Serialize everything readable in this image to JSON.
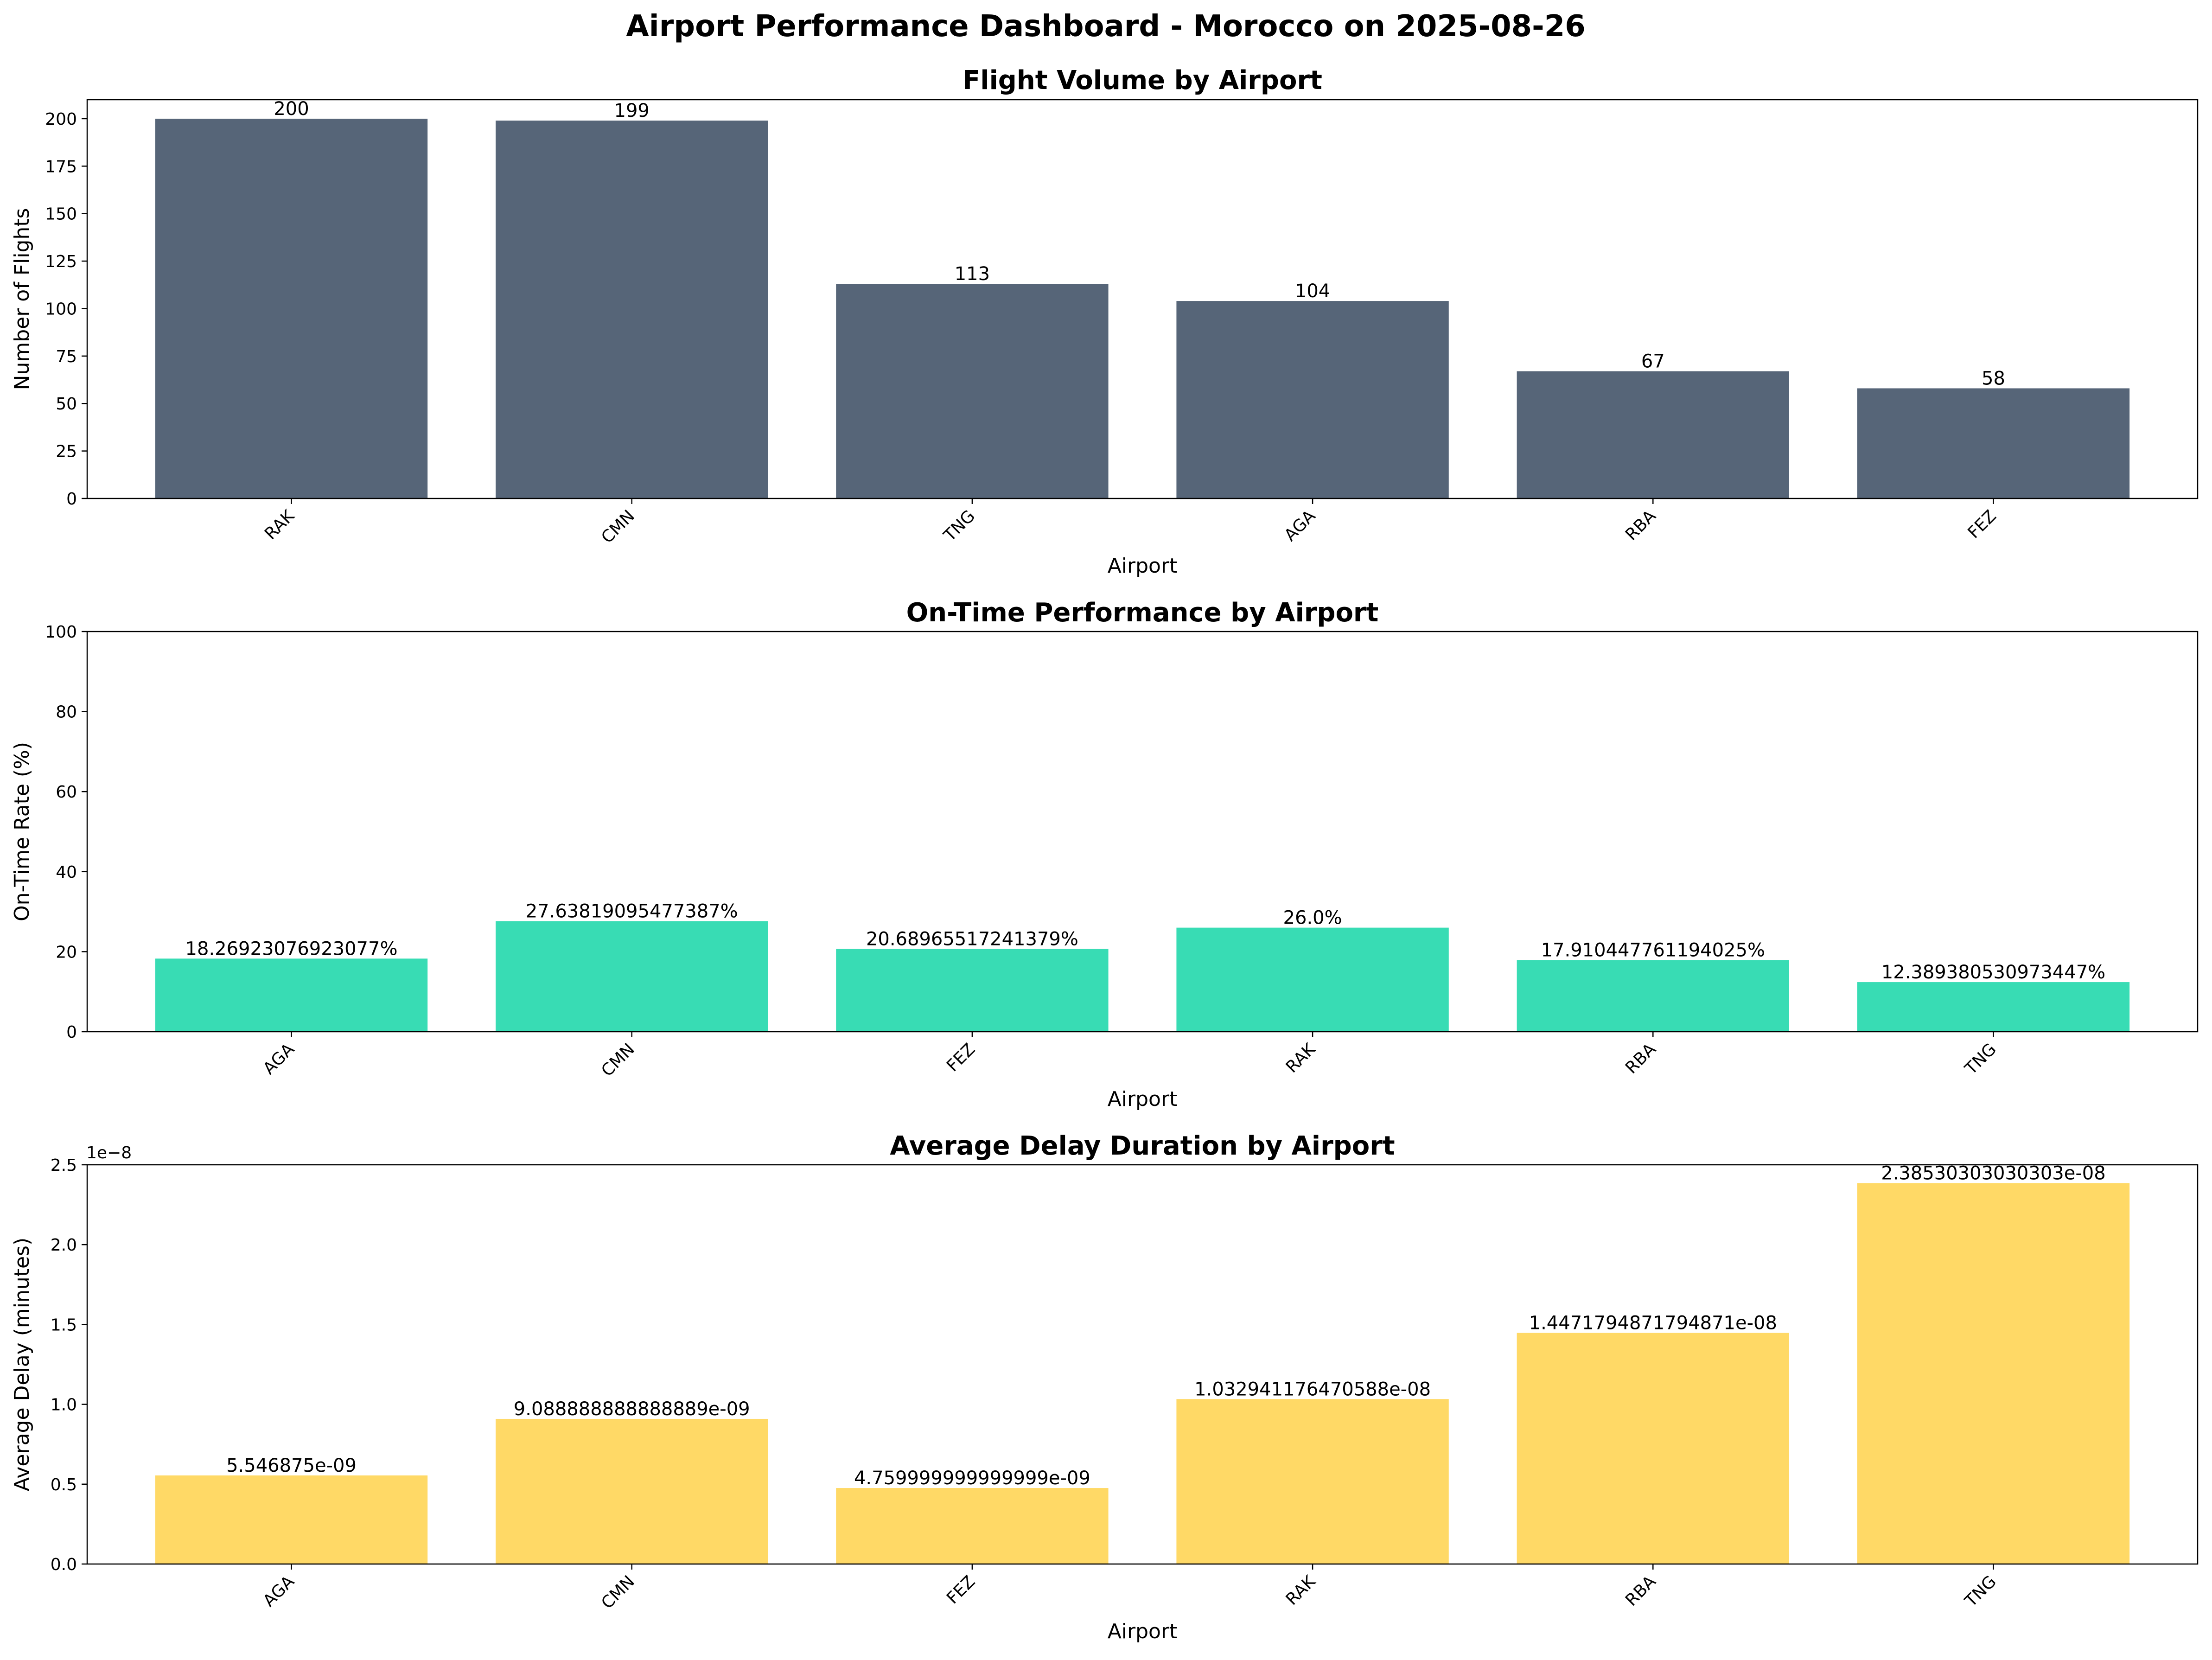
{
  "suptitle": "Airport Performance Dashboard - Morocco on 2025-08-26",
  "colors": {
    "flight_volume": "#566578",
    "on_time": "#38dcb4",
    "avg_delay": "#ffd966"
  },
  "chart_data": [
    {
      "type": "bar",
      "title": "Flight Volume by Airport",
      "xlabel": "Airport",
      "ylabel": "Number of Flights",
      "categories": [
        "RAK",
        "CMN",
        "TNG",
        "AGA",
        "RBA",
        "FEZ"
      ],
      "values": [
        200,
        199,
        113,
        104,
        67,
        58
      ],
      "value_labels": [
        "200",
        "199",
        "113",
        "104",
        "67",
        "58"
      ],
      "ylim": [
        0,
        210
      ],
      "yticks": [
        0,
        25,
        50,
        75,
        100,
        125,
        150,
        175,
        200
      ],
      "ytick_labels": [
        "0",
        "25",
        "50",
        "75",
        "100",
        "125",
        "150",
        "175",
        "200"
      ],
      "grid": false
    },
    {
      "type": "bar",
      "title": "On-Time Performance by Airport",
      "xlabel": "Airport",
      "ylabel": "On-Time Rate (%)",
      "categories": [
        "AGA",
        "CMN",
        "FEZ",
        "RAK",
        "RBA",
        "TNG"
      ],
      "values": [
        18.26923076923077,
        27.63819095477387,
        20.68965517241379,
        26.0,
        17.910447761194025,
        12.389380530973447
      ],
      "value_labels": [
        "18.26923076923077%",
        "27.63819095477387%",
        "20.68965517241379%",
        "26.0%",
        "17.910447761194025%",
        "12.389380530973447%"
      ],
      "ylim": [
        0,
        100
      ],
      "yticks": [
        0,
        20,
        40,
        60,
        80,
        100
      ],
      "ytick_labels": [
        "0",
        "20",
        "40",
        "60",
        "80",
        "100"
      ],
      "grid": false
    },
    {
      "type": "bar",
      "title": "Average Delay Duration by Airport",
      "xlabel": "Airport",
      "ylabel": "Average Delay (minutes)",
      "categories": [
        "AGA",
        "CMN",
        "FEZ",
        "RAK",
        "RBA",
        "TNG"
      ],
      "values": [
        5.546875e-09,
        9.088888888888889e-09,
        4.759999999999999e-09,
        1.032941176470588e-08,
        1.4471794871794871e-08,
        2.38530303030303e-08
      ],
      "value_labels": [
        "5.546875e-09",
        "9.088888888888889e-09",
        "4.759999999999999e-09",
        "1.032941176470588e-08",
        "1.4471794871794871e-08",
        "2.38530303030303e-08"
      ],
      "ylim": [
        0,
        2.5e-08
      ],
      "yticks": [
        0,
        5e-09,
        1e-08,
        1.5e-08,
        2e-08,
        2.5e-08
      ],
      "ytick_labels": [
        "0.0",
        "0.5",
        "1.0",
        "1.5",
        "2.0",
        "2.5"
      ],
      "offset_label": "1e−8",
      "grid": false
    }
  ]
}
